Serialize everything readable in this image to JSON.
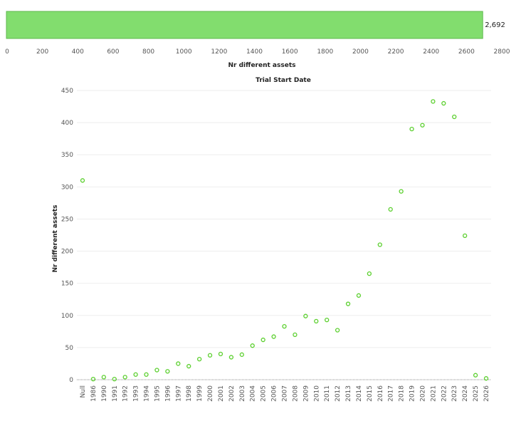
{
  "colors": {
    "bar": "#82dd6e",
    "bar_stroke": "#5fb84e",
    "point": "#5cd02f",
    "grid": "#eeeeee",
    "zero_line": "#888888"
  },
  "chart_data": [
    {
      "type": "bar",
      "orientation": "horizontal",
      "values": [
        2692
      ],
      "value_label": "2,692",
      "xlabel": "Nr different assets",
      "xlim": [
        0,
        2800
      ],
      "xticks": [
        0,
        200,
        400,
        600,
        800,
        1000,
        1200,
        1400,
        1600,
        1800,
        2000,
        2200,
        2400,
        2600,
        2800
      ]
    },
    {
      "type": "scatter",
      "title": "Trial Start Date",
      "ylabel": "Nr different assets",
      "ylim": [
        0,
        450
      ],
      "yticks": [
        0,
        50,
        100,
        150,
        200,
        250,
        300,
        350,
        400,
        450
      ],
      "grid": true,
      "categories": [
        "Null",
        "1986",
        "1990",
        "1991",
        "1992",
        "1993",
        "1994",
        "1995",
        "1996",
        "1997",
        "1998",
        "1999",
        "2000",
        "2001",
        "2002",
        "2003",
        "2004",
        "2005",
        "2006",
        "2007",
        "2008",
        "2009",
        "2010",
        "2011",
        "2012",
        "2013",
        "2014",
        "2015",
        "2016",
        "2017",
        "2018",
        "2019",
        "2020",
        "2021",
        "2022",
        "2023",
        "2024",
        "2025",
        "2026"
      ],
      "values": [
        310,
        1,
        4,
        1,
        4,
        8,
        8,
        15,
        13,
        25,
        21,
        32,
        38,
        40,
        35,
        39,
        53,
        62,
        67,
        83,
        70,
        99,
        91,
        93,
        77,
        118,
        131,
        165,
        210,
        265,
        293,
        390,
        396,
        433,
        430,
        409,
        224,
        7,
        2
      ]
    }
  ]
}
